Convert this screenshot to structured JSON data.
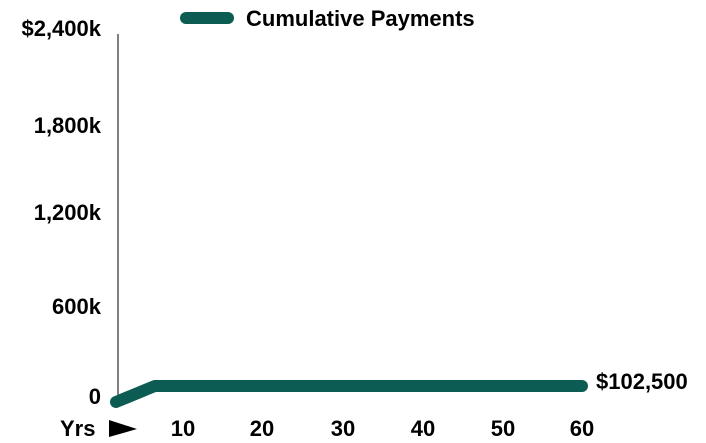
{
  "chart_data": {
    "type": "line",
    "legend": {
      "placement": "top",
      "entries": [
        "Cumulative Payments"
      ]
    },
    "x_axis_label": "Yrs",
    "x_arrow_icon": "right-triangle-arrow-icon",
    "x_ticks": [
      "10",
      "20",
      "30",
      "40",
      "50",
      "60"
    ],
    "y_ticks": [
      "0",
      "600k",
      "1,200k",
      "1,800k",
      "$2,400k"
    ],
    "xlim": [
      0,
      60
    ],
    "ylim": [
      0,
      2400000
    ],
    "grid": false,
    "series": [
      {
        "name": "Cumulative Payments",
        "color": "#0d5c53",
        "x": [
          0,
          5,
          60
        ],
        "y": [
          0,
          102500,
          102500
        ]
      }
    ],
    "end_label": "$102,500"
  }
}
